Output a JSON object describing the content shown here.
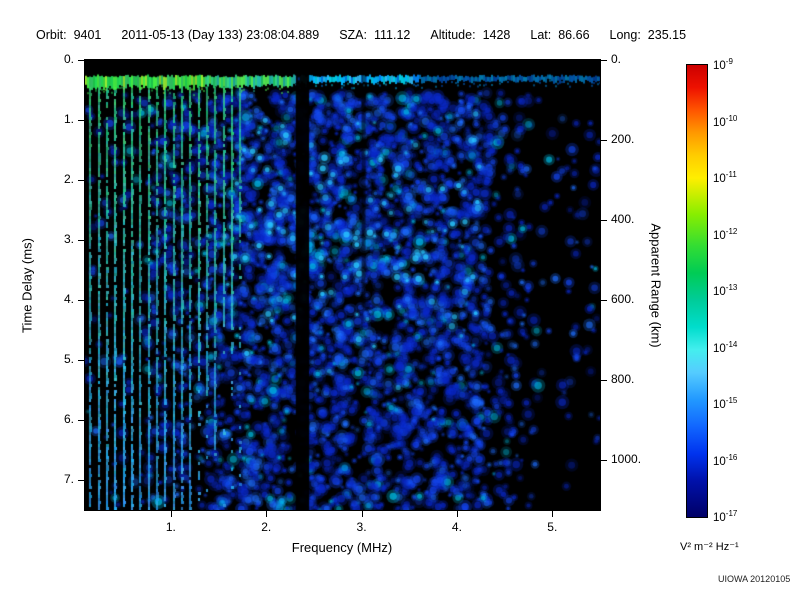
{
  "header": {
    "items": [
      {
        "label": "Orbit:",
        "value": "9401"
      },
      {
        "label": "",
        "value": "2011-05-13 (Day 133) 23:08:04.889"
      },
      {
        "label": "SZA:",
        "value": "111.12"
      },
      {
        "label": "Altitude:",
        "value": "1428"
      },
      {
        "label": "Lat:",
        "value": "86.66"
      },
      {
        "label": "Long:",
        "value": "235.15"
      }
    ]
  },
  "chart_data": {
    "type": "heatmap",
    "title": "",
    "xlabel": "Frequency (MHz)",
    "ylabel_left": "Time Delay (ms)",
    "ylabel_right": "Apparent Range (km)",
    "xlim": [
      0.1,
      5.5
    ],
    "ylim_ms": [
      0,
      7.5
    ],
    "ylim_range_km": [
      0,
      1125
    ],
    "x_ticks": [
      {
        "v": 1,
        "label": "1."
      },
      {
        "v": 2,
        "label": "2."
      },
      {
        "v": 3,
        "label": "3."
      },
      {
        "v": 4,
        "label": "4."
      },
      {
        "v": 5,
        "label": "5."
      }
    ],
    "y_ticks_left": [
      {
        "v": 0,
        "label": "0."
      },
      {
        "v": 1,
        "label": "1."
      },
      {
        "v": 2,
        "label": "2."
      },
      {
        "v": 3,
        "label": "3."
      },
      {
        "v": 4,
        "label": "4."
      },
      {
        "v": 5,
        "label": "5."
      },
      {
        "v": 6,
        "label": "6."
      },
      {
        "v": 7,
        "label": "7."
      }
    ],
    "y_ticks_right": [
      {
        "v": 0,
        "label": "0."
      },
      {
        "v": 200,
        "label": "200."
      },
      {
        "v": 400,
        "label": "400."
      },
      {
        "v": 600,
        "label": "600."
      },
      {
        "v": 800,
        "label": "800."
      },
      {
        "v": 1000,
        "label": "1000."
      }
    ],
    "background": "#000000",
    "features": {
      "surface_reflection_band": {
        "delay_ms": 0.33,
        "thickness_ms": 0.18,
        "freq_span_mhz": [
          0.1,
          5.5
        ]
      },
      "plasma_harmonic_stripes": {
        "freq_start_mhz": 0.155,
        "freq_end_mhz": 1.79,
        "spacing_mhz": 0.0875
      },
      "diffuse_ionospheric_scatter": {
        "freq_span_mhz": [
          0.75,
          4.75
        ],
        "delay_span_ms": [
          0.5,
          7.5
        ]
      },
      "absorption_gap_mhz": [
        2.31,
        2.45
      ],
      "secondary_dim_column_mhz": 3.0
    },
    "colorbar": {
      "tick_base": "10",
      "tick_exponents": [
        "-9",
        "-10",
        "-11",
        "-12",
        "-13",
        "-14",
        "-15",
        "-16",
        "-17"
      ],
      "unit": "V² m⁻² Hz⁻¹",
      "gradient": [
        {
          "c": "#cc0000",
          "p": 0
        },
        {
          "c": "#ee1100",
          "p": 5
        },
        {
          "c": "#ff5500",
          "p": 10
        },
        {
          "c": "#ff9900",
          "p": 15
        },
        {
          "c": "#ffcc00",
          "p": 20
        },
        {
          "c": "#ffee00",
          "p": 25
        },
        {
          "c": "#88ee00",
          "p": 33
        },
        {
          "c": "#33dd33",
          "p": 40
        },
        {
          "c": "#00cc55",
          "p": 46
        },
        {
          "c": "#00cc99",
          "p": 52
        },
        {
          "c": "#00ddcc",
          "p": 58
        },
        {
          "c": "#44eeee",
          "p": 63
        },
        {
          "c": "#55ccff",
          "p": 68
        },
        {
          "c": "#2299ff",
          "p": 74
        },
        {
          "c": "#1166ff",
          "p": 80
        },
        {
          "c": "#0033ee",
          "p": 86
        },
        {
          "c": "#0011aa",
          "p": 92
        },
        {
          "c": "#000066",
          "p": 100
        }
      ]
    }
  },
  "footer": {
    "credit": "UIOWA 20120105"
  }
}
